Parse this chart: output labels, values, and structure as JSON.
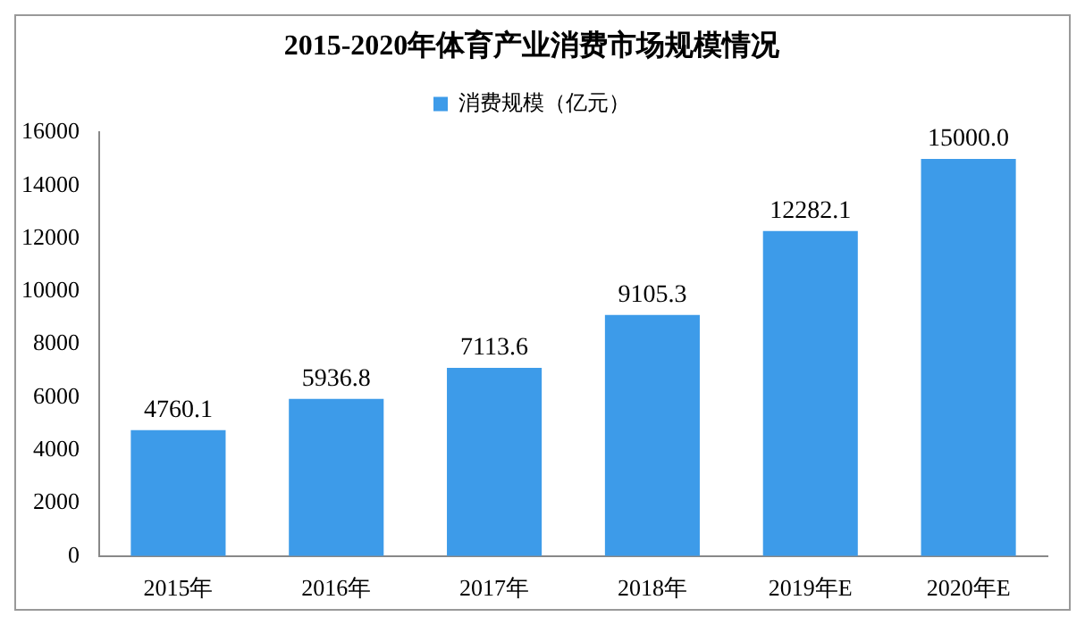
{
  "chart_data": {
    "type": "bar",
    "title": "2015-2020年体育产业消费市场规模情况",
    "categories": [
      "2015年",
      "2016年",
      "2017年",
      "2018年",
      "2019年E",
      "2020年E"
    ],
    "series": [
      {
        "name": "消费规模（亿元）",
        "color": "#3d9be9",
        "values": [
          4760.1,
          5936.8,
          7113.6,
          9105.3,
          12282.1,
          15000.0
        ]
      }
    ],
    "value_labels": [
      "4760.1",
      "5936.8",
      "7113.6",
      "9105.3",
      "12282.1",
      "15000.0"
    ],
    "ylim": [
      0,
      16000
    ],
    "yticks": [
      0,
      2000,
      4000,
      6000,
      8000,
      10000,
      12000,
      14000,
      16000
    ],
    "grid": false,
    "legend": "top"
  }
}
